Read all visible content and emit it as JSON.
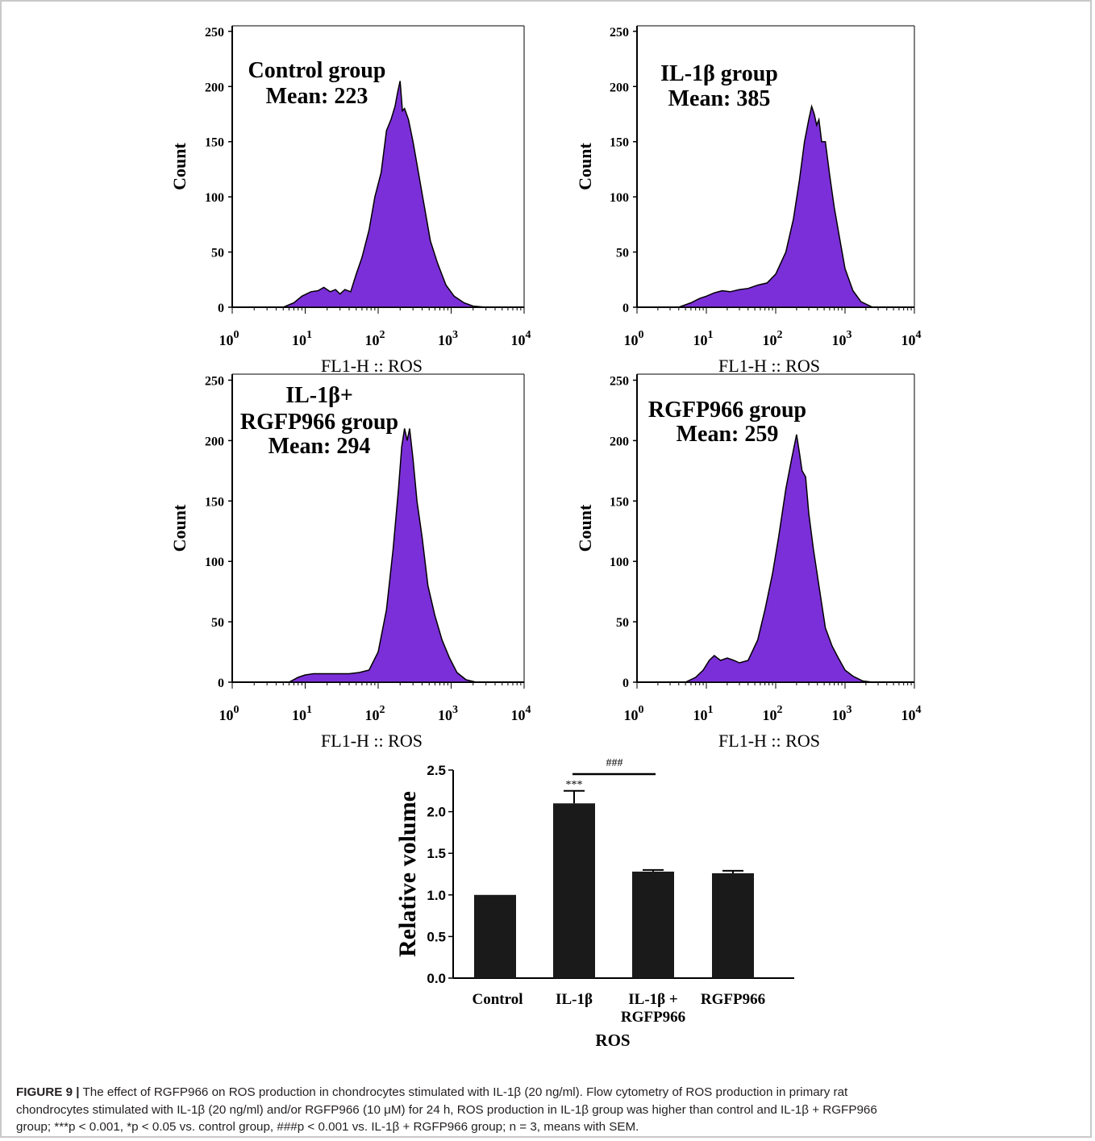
{
  "colors": {
    "fill": "#7b2fd8",
    "axis": "#000000",
    "bar": "#1a1a1a"
  },
  "chart_data": [
    {
      "type": "area",
      "title": "Control group",
      "subtitle": "Mean: 223",
      "ylabel": "Count",
      "xlabel": "FL1-H :: ROS",
      "x_scale": "log",
      "xlim": [
        1,
        10000
      ],
      "ylim": [
        0,
        250
      ],
      "yticks": [
        "0",
        "50",
        "100",
        "150",
        "200",
        "250"
      ],
      "xticks": [
        {
          "base": "10",
          "exp": "0"
        },
        {
          "base": "10",
          "exp": "1"
        },
        {
          "base": "10",
          "exp": "2"
        },
        {
          "base": "10",
          "exp": "3"
        },
        {
          "base": "10",
          "exp": "4"
        }
      ],
      "x": [
        5,
        7,
        9,
        12,
        15,
        18,
        22,
        26,
        30,
        35,
        42,
        50,
        60,
        75,
        90,
        110,
        130,
        150,
        170,
        185,
        200,
        215,
        230,
        260,
        300,
        350,
        420,
        520,
        650,
        850,
        1100,
        1500,
        2000,
        3000
      ],
      "y": [
        0,
        4,
        10,
        14,
        15,
        18,
        14,
        16,
        12,
        16,
        14,
        30,
        45,
        70,
        100,
        122,
        160,
        170,
        182,
        195,
        205,
        178,
        180,
        170,
        150,
        125,
        95,
        60,
        40,
        20,
        10,
        4,
        1,
        0
      ]
    },
    {
      "type": "area",
      "title": "IL-1β group",
      "subtitle": "Mean: 385",
      "ylabel": "Count",
      "xlabel": "FL1-H :: ROS",
      "x_scale": "log",
      "xlim": [
        1,
        10000
      ],
      "ylim": [
        0,
        250
      ],
      "yticks": [
        "0",
        "50",
        "100",
        "150",
        "200",
        "250"
      ],
      "xticks": [
        {
          "base": "10",
          "exp": "0"
        },
        {
          "base": "10",
          "exp": "1"
        },
        {
          "base": "10",
          "exp": "2"
        },
        {
          "base": "10",
          "exp": "3"
        },
        {
          "base": "10",
          "exp": "4"
        }
      ],
      "x": [
        4,
        6,
        8,
        10,
        13,
        17,
        22,
        30,
        40,
        55,
        75,
        100,
        140,
        180,
        220,
        260,
        300,
        330,
        360,
        390,
        420,
        460,
        520,
        600,
        700,
        850,
        1000,
        1300,
        1700,
        2500
      ],
      "y": [
        0,
        4,
        8,
        10,
        13,
        15,
        14,
        16,
        17,
        20,
        22,
        30,
        50,
        80,
        115,
        150,
        170,
        182,
        175,
        165,
        170,
        150,
        150,
        120,
        90,
        60,
        35,
        15,
        5,
        0
      ]
    },
    {
      "type": "area",
      "title": "IL-1β+",
      "subtitle": "RGFP966 group",
      "note": "Mean: 294",
      "ylabel": "Count",
      "xlabel": "FL1-H :: ROS",
      "x_scale": "log",
      "xlim": [
        1,
        10000
      ],
      "ylim": [
        0,
        250
      ],
      "yticks": [
        "0",
        "50",
        "100",
        "150",
        "200",
        "250"
      ],
      "xticks": [
        {
          "base": "10",
          "exp": "0"
        },
        {
          "base": "10",
          "exp": "1"
        },
        {
          "base": "10",
          "exp": "2"
        },
        {
          "base": "10",
          "exp": "3"
        },
        {
          "base": "10",
          "exp": "4"
        }
      ],
      "x": [
        6,
        8,
        10,
        13,
        17,
        22,
        30,
        40,
        55,
        75,
        100,
        130,
        160,
        190,
        210,
        230,
        250,
        270,
        300,
        340,
        400,
        480,
        600,
        750,
        950,
        1200,
        1600,
        2200
      ],
      "y": [
        0,
        4,
        6,
        7,
        7,
        7,
        7,
        7,
        8,
        10,
        25,
        60,
        110,
        160,
        195,
        210,
        200,
        210,
        185,
        150,
        120,
        80,
        55,
        35,
        20,
        8,
        2,
        0
      ]
    },
    {
      "type": "area",
      "title": "RGFP966 group",
      "subtitle": "Mean: 259",
      "ylabel": "Count",
      "xlabel": "FL1-H :: ROS",
      "x_scale": "log",
      "xlim": [
        1,
        10000
      ],
      "ylim": [
        0,
        250
      ],
      "yticks": [
        "0",
        "50",
        "100",
        "150",
        "200",
        "250"
      ],
      "xticks": [
        {
          "base": "10",
          "exp": "0"
        },
        {
          "base": "10",
          "exp": "1"
        },
        {
          "base": "10",
          "exp": "2"
        },
        {
          "base": "10",
          "exp": "3"
        },
        {
          "base": "10",
          "exp": "4"
        }
      ],
      "x": [
        5,
        7,
        9,
        11,
        13,
        16,
        20,
        25,
        30,
        40,
        55,
        70,
        90,
        110,
        140,
        170,
        200,
        220,
        240,
        270,
        300,
        350,
        420,
        520,
        650,
        800,
        1000,
        1300,
        1800,
        2500
      ],
      "y": [
        0,
        4,
        10,
        18,
        22,
        18,
        20,
        18,
        16,
        18,
        35,
        60,
        90,
        120,
        160,
        185,
        205,
        190,
        175,
        170,
        140,
        110,
        80,
        45,
        30,
        20,
        10,
        5,
        1,
        0
      ]
    },
    {
      "type": "bar",
      "categories": [
        "Control",
        "IL-1β",
        "IL-1β +\nRGFP966",
        "RGFP966"
      ],
      "values": [
        1.0,
        2.1,
        1.28,
        1.26
      ],
      "errors": [
        0,
        0.15,
        0.02,
        0.03
      ],
      "ylabel": "Relative volume",
      "xlabel": "ROS",
      "ylim": [
        0,
        2.5
      ],
      "yticks": [
        "0.0",
        "0.5",
        "1.0",
        "1.5",
        "2.0",
        "2.5"
      ],
      "annotations": {
        "star": "***",
        "hash": "###"
      }
    }
  ],
  "caption": {
    "label": "FIGURE 9 |",
    "line1": "The effect of RGFP966 on ROS production in chondrocytes stimulated with IL-1β (20 ng/ml). Flow cytometry of ROS production in primary rat",
    "line2": "chondrocytes stimulated with IL-1β (20 ng/ml) and/or RGFP966 (10 μM) for 24 h, ROS production in IL-1β group was higher than control and IL-1β + RGFP966",
    "line3": "group; ***p < 0.001, *p < 0.05 vs. control group, ###p < 0.001 vs. IL-1β + RGFP966 group; n = 3, means with SEM."
  }
}
